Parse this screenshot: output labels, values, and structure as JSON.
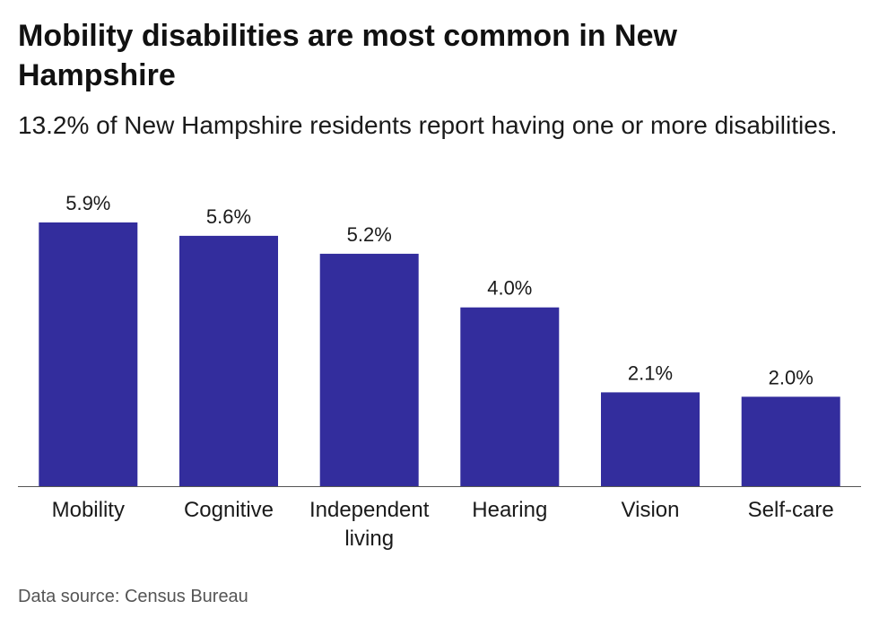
{
  "title": "Mobility disabilities are most common in New Hampshire",
  "subtitle": "13.2% of New Hampshire residents report having one or more disabilities.",
  "source": "Data source: Census Bureau",
  "colors": {
    "bar": "#332d9d",
    "axis": "#555555"
  },
  "chart_data": {
    "type": "bar",
    "title": "Mobility disabilities are most common in New Hampshire",
    "subtitle": "13.2% of New Hampshire residents report having one or more disabilities.",
    "categories": [
      "Mobility",
      "Cognitive",
      "Independent living",
      "Hearing",
      "Vision",
      "Self-care"
    ],
    "category_lines": [
      [
        "Mobility"
      ],
      [
        "Cognitive"
      ],
      [
        "Independent",
        "living"
      ],
      [
        "Hearing"
      ],
      [
        "Vision"
      ],
      [
        "Self-care"
      ]
    ],
    "values": [
      5.9,
      5.6,
      5.2,
      4.0,
      2.1,
      2.0
    ],
    "data_labels": [
      "5.9%",
      "5.6%",
      "5.2%",
      "4.0%",
      "2.1%",
      "2.0%"
    ],
    "ylim": [
      0,
      5.9
    ],
    "grid": false,
    "legend": "none",
    "xlabel": "",
    "ylabel": ""
  }
}
